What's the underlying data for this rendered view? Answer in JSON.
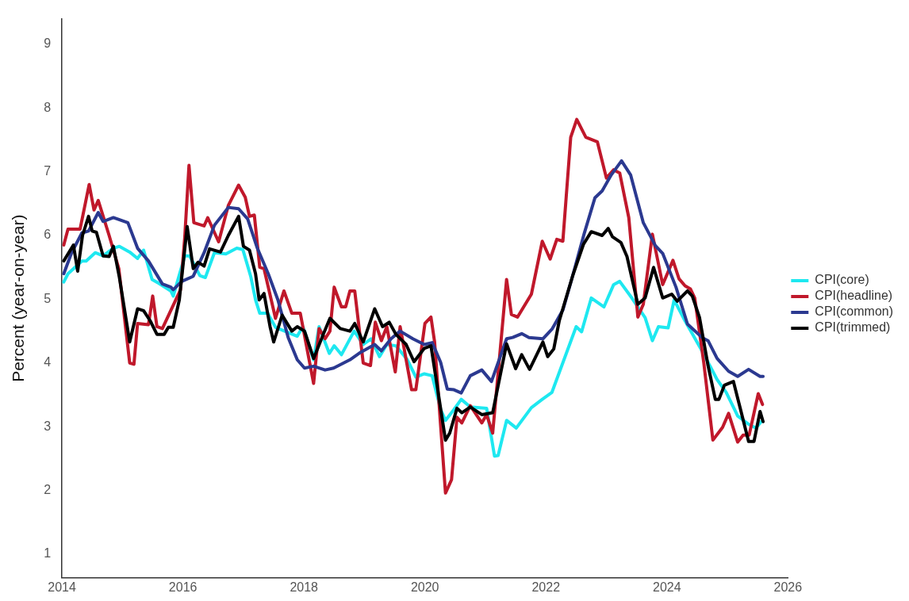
{
  "chart_data": {
    "type": "line",
    "ylabel": "Percent (year-on-year)",
    "xlim": [
      2014,
      2026
    ],
    "xticks": [
      2014,
      2016,
      2018,
      2020,
      2022,
      2024,
      2026
    ],
    "ylim": [
      0.63,
      9.4
    ],
    "yticks": [
      1,
      2,
      3,
      4,
      5,
      6,
      7,
      8,
      9
    ],
    "grid": false,
    "legend": "right",
    "marker": "none",
    "line_style": "solid",
    "series": [
      {
        "name": "CPI(core)",
        "color": "#1ee8f0",
        "x": [
          2014.03,
          2014.1,
          2014.33,
          2014.4,
          2014.55,
          2014.68,
          2014.85,
          2014.95,
          2015.12,
          2015.25,
          2015.35,
          2015.49,
          2015.6,
          2015.8,
          2015.84,
          2016.03,
          2016.11,
          2016.28,
          2016.37,
          2016.52,
          2016.71,
          2016.89,
          2016.99,
          2017.12,
          2017.2,
          2017.27,
          2017.4,
          2017.53,
          2017.89,
          2017.98,
          2018.01,
          2018.16,
          2018.25,
          2018.42,
          2018.5,
          2018.62,
          2018.83,
          2018.98,
          2019.11,
          2019.25,
          2019.37,
          2019.52,
          2019.71,
          2019.85,
          2019.99,
          2020.12,
          2020.26,
          2020.34,
          2020.48,
          2020.6,
          2020.75,
          2021.02,
          2021.15,
          2021.21,
          2021.35,
          2021.51,
          2021.76,
          2021.94,
          2022.1,
          2022.5,
          2022.59,
          2022.75,
          2022.96,
          2023.12,
          2023.22,
          2023.42,
          2023.64,
          2023.76,
          2023.86,
          2024.02,
          2024.12,
          2024.3,
          2024.58,
          2024.83,
          2024.98,
          2025.17,
          2025.35,
          2025.47,
          2025.56
        ],
        "values": [
          5.27,
          5.4,
          5.6,
          5.6,
          5.73,
          5.68,
          5.8,
          5.83,
          5.74,
          5.64,
          5.77,
          5.31,
          5.25,
          5.13,
          5.05,
          5.68,
          5.68,
          5.37,
          5.34,
          5.73,
          5.71,
          5.8,
          5.78,
          5.36,
          4.99,
          4.78,
          4.78,
          4.56,
          4.42,
          4.57,
          4.5,
          4.05,
          4.57,
          4.15,
          4.27,
          4.13,
          4.5,
          4.29,
          4.38,
          4.1,
          4.29,
          4.27,
          4.05,
          3.78,
          3.83,
          3.8,
          3.27,
          3.1,
          3.27,
          3.43,
          3.31,
          3.29,
          2.54,
          2.55,
          3.1,
          2.98,
          3.3,
          3.43,
          3.54,
          4.57,
          4.49,
          5.02,
          4.88,
          5.23,
          5.28,
          5.02,
          4.71,
          4.35,
          4.57,
          4.55,
          4.99,
          4.66,
          4.19,
          3.74,
          3.54,
          3.17,
          3.04,
          2.98,
          3.08
        ]
      },
      {
        "name": "CPI(headline)",
        "color": "#c0182b",
        "x": [
          2014.03,
          2014.1,
          2014.3,
          2014.45,
          2014.53,
          2014.6,
          2014.78,
          2014.94,
          2015.12,
          2015.19,
          2015.25,
          2015.43,
          2015.5,
          2015.57,
          2015.66,
          2015.96,
          2016.03,
          2016.1,
          2016.18,
          2016.35,
          2016.41,
          2016.59,
          2016.75,
          2016.92,
          2017.03,
          2017.1,
          2017.18,
          2017.27,
          2017.34,
          2017.53,
          2017.67,
          2017.8,
          2017.94,
          2018.16,
          2018.25,
          2018.35,
          2018.43,
          2018.5,
          2018.62,
          2018.69,
          2018.76,
          2018.84,
          2018.98,
          2019.1,
          2019.18,
          2019.28,
          2019.37,
          2019.51,
          2019.59,
          2019.69,
          2019.78,
          2019.85,
          2020.0,
          2020.1,
          2020.16,
          2020.34,
          2020.44,
          2020.53,
          2020.61,
          2020.75,
          2020.94,
          2021.02,
          2021.12,
          2021.35,
          2021.43,
          2021.53,
          2021.76,
          2021.94,
          2022.07,
          2022.18,
          2022.28,
          2022.41,
          2022.51,
          2022.66,
          2022.85,
          2023.0,
          2023.12,
          2023.22,
          2023.37,
          2023.52,
          2023.61,
          2023.76,
          2023.93,
          2024.1,
          2024.2,
          2024.3,
          2024.39,
          2024.46,
          2024.61,
          2024.76,
          2024.92,
          2025.02,
          2025.17,
          2025.26,
          2025.36,
          2025.51,
          2025.58
        ],
        "values": [
          5.85,
          6.1,
          6.1,
          6.8,
          6.4,
          6.55,
          6.0,
          5.48,
          4.0,
          3.98,
          4.62,
          4.6,
          5.05,
          4.57,
          4.54,
          5.15,
          5.97,
          7.1,
          6.2,
          6.15,
          6.28,
          5.9,
          6.47,
          6.79,
          6.6,
          6.3,
          6.32,
          5.5,
          5.48,
          4.7,
          5.13,
          4.78,
          4.78,
          3.68,
          4.54,
          4.38,
          4.5,
          5.19,
          4.88,
          4.88,
          5.13,
          5.13,
          4.0,
          3.96,
          4.64,
          4.35,
          4.57,
          3.86,
          4.57,
          4.05,
          3.58,
          3.58,
          4.62,
          4.72,
          4.33,
          1.96,
          2.17,
          3.15,
          3.06,
          3.33,
          3.06,
          3.19,
          2.9,
          5.31,
          4.76,
          4.72,
          5.08,
          5.91,
          5.63,
          5.94,
          5.91,
          7.54,
          7.82,
          7.54,
          7.47,
          6.9,
          7.03,
          6.98,
          6.28,
          4.72,
          4.92,
          6.02,
          5.23,
          5.61,
          5.32,
          5.21,
          5.16,
          5.02,
          4.0,
          2.79,
          2.99,
          3.21,
          2.76,
          2.87,
          2.87,
          3.52,
          3.35
        ]
      },
      {
        "name": "CPI(common)",
        "color": "#2b3990",
        "x": [
          2014.03,
          2014.16,
          2014.33,
          2014.44,
          2014.6,
          2014.68,
          2014.85,
          2015.09,
          2015.25,
          2015.43,
          2015.66,
          2015.8,
          2015.84,
          2015.98,
          2016.17,
          2016.35,
          2016.52,
          2016.75,
          2016.92,
          2017.07,
          2017.23,
          2017.41,
          2017.57,
          2017.74,
          2017.89,
          2018.01,
          2018.16,
          2018.35,
          2018.49,
          2018.76,
          2018.94,
          2019.17,
          2019.28,
          2019.44,
          2019.59,
          2019.8,
          2019.99,
          2020.12,
          2020.26,
          2020.37,
          2020.48,
          2020.6,
          2020.75,
          2020.94,
          2021.1,
          2021.35,
          2021.45,
          2021.6,
          2021.72,
          2021.95,
          2022.1,
          2022.28,
          2022.44,
          2022.63,
          2022.81,
          2022.93,
          2023.08,
          2023.25,
          2023.4,
          2023.61,
          2023.81,
          2023.93,
          2024.15,
          2024.34,
          2024.58,
          2024.68,
          2024.83,
          2025.02,
          2025.17,
          2025.35,
          2025.54,
          2025.59
        ],
        "values": [
          5.4,
          5.73,
          6.04,
          6.07,
          6.36,
          6.22,
          6.28,
          6.2,
          5.8,
          5.6,
          5.24,
          5.19,
          5.15,
          5.28,
          5.36,
          5.73,
          6.16,
          6.44,
          6.42,
          6.26,
          5.8,
          5.4,
          4.99,
          4.4,
          4.05,
          3.92,
          3.95,
          3.89,
          3.92,
          4.05,
          4.17,
          4.29,
          4.19,
          4.38,
          4.5,
          4.38,
          4.29,
          4.32,
          4.01,
          3.59,
          3.58,
          3.53,
          3.8,
          3.89,
          3.71,
          4.38,
          4.4,
          4.46,
          4.4,
          4.38,
          4.53,
          4.83,
          5.36,
          6.02,
          6.59,
          6.7,
          6.95,
          7.17,
          6.95,
          6.2,
          5.84,
          5.72,
          5.19,
          4.61,
          4.4,
          4.35,
          4.07,
          3.87,
          3.79,
          3.9,
          3.79,
          3.79
        ]
      },
      {
        "name": "CPI(trimmed)",
        "color": "#000000",
        "x": [
          2014.03,
          2014.19,
          2014.26,
          2014.34,
          2014.44,
          2014.5,
          2014.57,
          2014.68,
          2014.78,
          2014.85,
          2014.95,
          2015.12,
          2015.25,
          2015.35,
          2015.46,
          2015.57,
          2015.69,
          2015.76,
          2015.84,
          2015.94,
          2016.07,
          2016.17,
          2016.25,
          2016.35,
          2016.44,
          2016.62,
          2016.75,
          2016.92,
          2017.0,
          2017.1,
          2017.2,
          2017.26,
          2017.34,
          2017.44,
          2017.5,
          2017.64,
          2017.8,
          2017.89,
          2018.01,
          2018.16,
          2018.32,
          2018.43,
          2018.6,
          2018.76,
          2018.84,
          2018.98,
          2019.17,
          2019.3,
          2019.41,
          2019.52,
          2019.69,
          2019.82,
          2019.99,
          2020.1,
          2020.34,
          2020.41,
          2020.53,
          2020.61,
          2020.75,
          2020.94,
          2021.12,
          2021.35,
          2021.5,
          2021.6,
          2021.73,
          2021.95,
          2022.03,
          2022.13,
          2022.22,
          2022.44,
          2022.62,
          2022.75,
          2022.93,
          2023.03,
          2023.1,
          2023.24,
          2023.34,
          2023.52,
          2023.64,
          2023.78,
          2023.93,
          2024.08,
          2024.17,
          2024.34,
          2024.42,
          2024.54,
          2024.68,
          2024.8,
          2024.86,
          2024.95,
          2025.1,
          2025.22,
          2025.35,
          2025.44,
          2025.54,
          2025.59
        ],
        "values": [
          5.6,
          5.85,
          5.44,
          6.0,
          6.3,
          6.07,
          6.05,
          5.68,
          5.67,
          5.83,
          5.34,
          4.33,
          4.85,
          4.82,
          4.66,
          4.45,
          4.45,
          4.56,
          4.56,
          4.99,
          6.14,
          5.48,
          5.58,
          5.52,
          5.79,
          5.74,
          6.0,
          6.3,
          5.83,
          5.77,
          5.4,
          4.99,
          5.09,
          4.57,
          4.33,
          4.75,
          4.5,
          4.57,
          4.5,
          4.07,
          4.45,
          4.7,
          4.54,
          4.5,
          4.62,
          4.33,
          4.85,
          4.57,
          4.64,
          4.45,
          4.29,
          4.02,
          4.23,
          4.27,
          2.79,
          2.9,
          3.29,
          3.22,
          3.31,
          3.19,
          3.22,
          4.3,
          3.91,
          4.13,
          3.9,
          4.33,
          4.1,
          4.22,
          4.66,
          5.36,
          5.86,
          6.06,
          6.0,
          6.11,
          5.98,
          5.89,
          5.67,
          4.92,
          5.02,
          5.5,
          5.02,
          5.08,
          4.97,
          5.13,
          5.05,
          4.71,
          3.96,
          3.43,
          3.43,
          3.65,
          3.71,
          3.26,
          2.77,
          2.77,
          3.24,
          3.08
        ]
      }
    ]
  }
}
